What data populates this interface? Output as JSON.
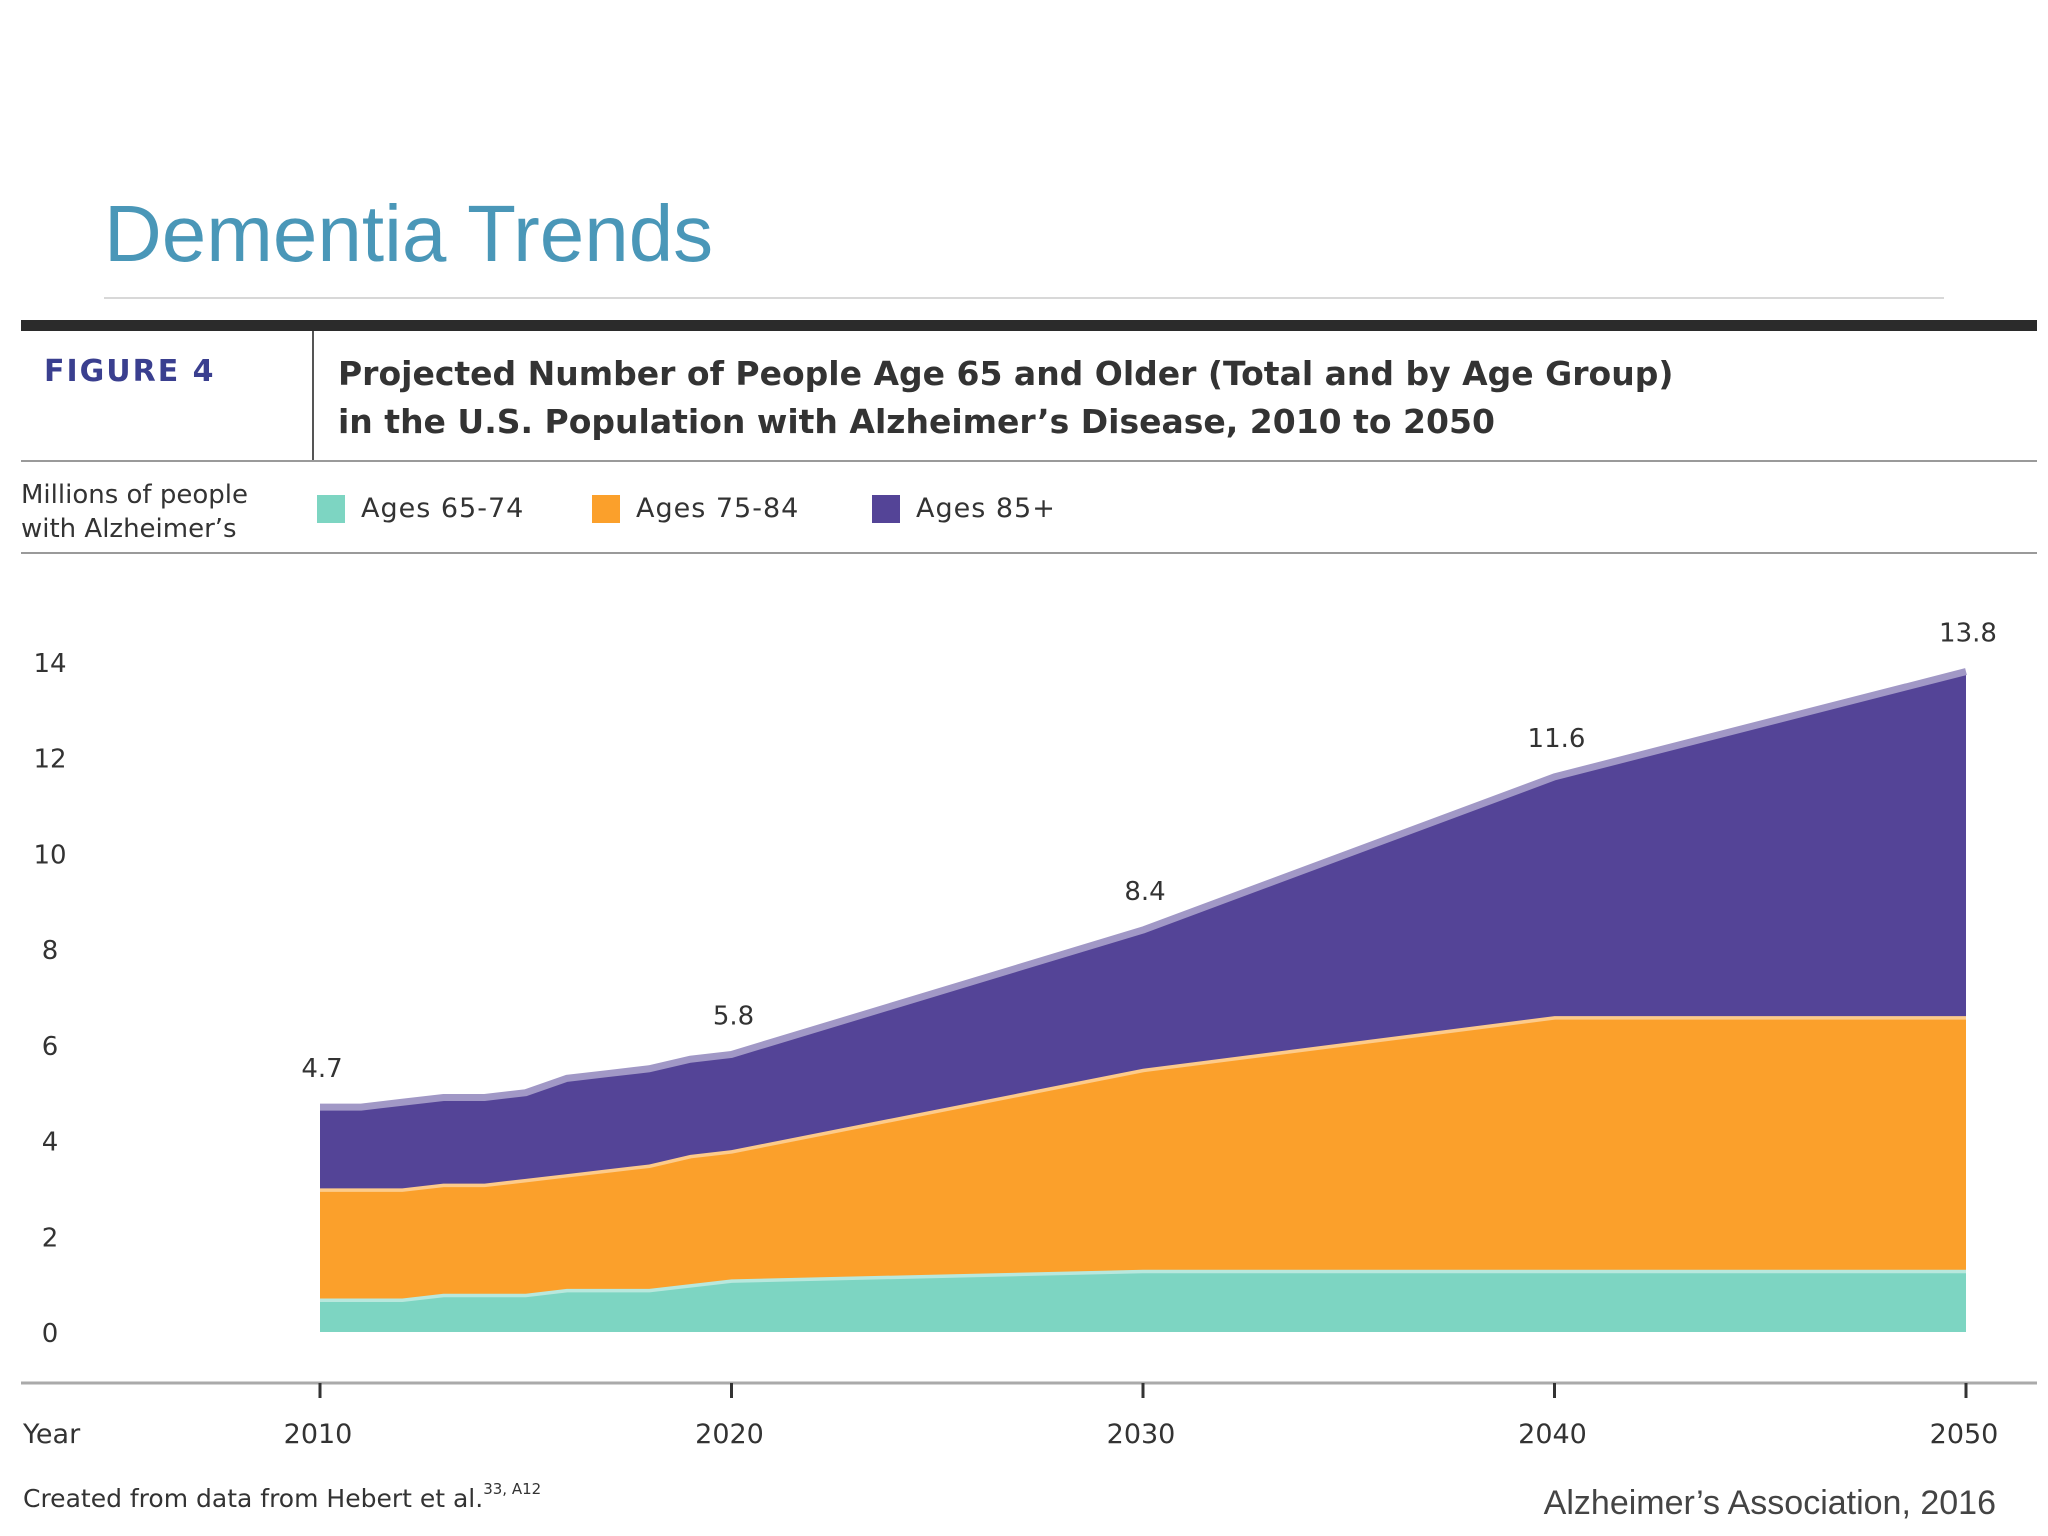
{
  "slide": {
    "title": "Dementia Trends",
    "credit": "Alzheimer’s Association, 2016"
  },
  "figure": {
    "label": "FIGURE 4",
    "title_line1": "Projected Number of People Age 65 and Older (Total and by Age Group)",
    "title_line2": "in the U.S. Population with Alzheimer’s Disease, 2010 to 2050",
    "source_note": "Created from data from Hebert et al.",
    "source_superscript": "33, A12"
  },
  "chart_data": {
    "type": "area",
    "stacked": true,
    "title": "Projected Number of People Age 65 and Older (Total and by Age Group) in the U.S. Population with Alzheimer’s Disease, 2010 to 2050",
    "ylabel_line1": "Millions of people",
    "ylabel_line2": "with Alzheimer’s",
    "xlabel": "Year",
    "ylim": [
      0,
      14
    ],
    "yticks": [
      0,
      2,
      4,
      6,
      8,
      10,
      12,
      14
    ],
    "xticks": [
      2010,
      2020,
      2030,
      2040,
      2050
    ],
    "x": [
      2010,
      2011,
      2012,
      2013,
      2014,
      2015,
      2016,
      2017,
      2018,
      2019,
      2020,
      2030,
      2040,
      2050
    ],
    "series": [
      {
        "name": "Ages 65-74",
        "color": "#7dd5c2",
        "values": [
          0.7,
          0.7,
          0.7,
          0.8,
          0.8,
          0.8,
          0.9,
          0.9,
          0.9,
          1.0,
          1.1,
          1.3,
          1.3,
          1.3
        ]
      },
      {
        "name": "Ages 75-84",
        "color": "#fba02b",
        "values": [
          2.3,
          2.3,
          2.3,
          2.3,
          2.3,
          2.4,
          2.4,
          2.5,
          2.6,
          2.7,
          2.7,
          4.2,
          5.3,
          5.3
        ]
      },
      {
        "name": "Ages 85+",
        "color": "#544497",
        "values": [
          1.7,
          1.7,
          1.8,
          1.8,
          1.8,
          1.8,
          2.0,
          2.0,
          2.0,
          2.0,
          2.0,
          2.9,
          5.0,
          7.2
        ]
      }
    ],
    "totals": [
      4.7,
      5.8,
      8.4,
      11.6,
      13.8
    ],
    "total_years": [
      2010,
      2020,
      2030,
      2040,
      2050
    ],
    "total_labels": [
      "4.7",
      "5.8",
      "8.4",
      "11.6",
      "13.8"
    ],
    "grid": false,
    "legend_position": "top"
  }
}
